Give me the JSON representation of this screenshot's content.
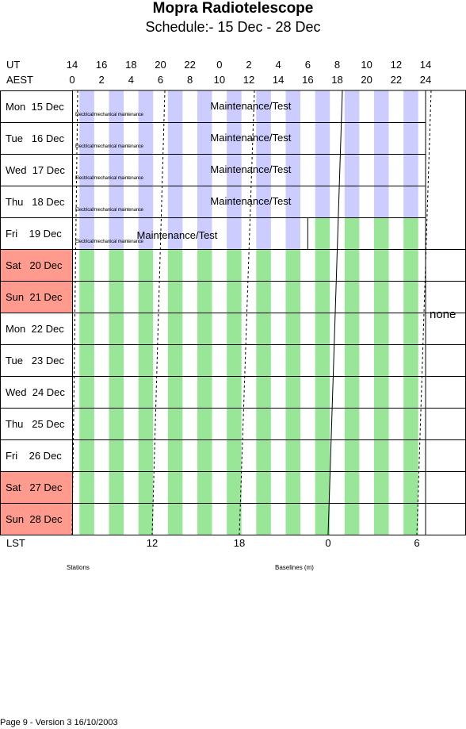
{
  "title": "Mopra Radiotelescope",
  "subtitle": "Schedule:- 15 Dec - 28 Dec",
  "ut_label": "UT",
  "aest_label": "AEST",
  "ut_ticks": [
    "14",
    "16",
    "18",
    "20",
    "22",
    "0",
    "2",
    "4",
    "6",
    "8",
    "10",
    "12",
    "14"
  ],
  "aest_ticks": [
    "0",
    "2",
    "4",
    "6",
    "8",
    "10",
    "12",
    "14",
    "16",
    "18",
    "20",
    "22",
    "24"
  ],
  "days": [
    {
      "name": "Mon",
      "date": "15 Dec",
      "weekend": false,
      "label": "Mon  15 Dec"
    },
    {
      "name": "Tue",
      "date": "16 Dec",
      "weekend": false,
      "label": "Tue   16 Dec"
    },
    {
      "name": "Wed",
      "date": "17 Dec",
      "weekend": false,
      "label": "Wed  17 Dec"
    },
    {
      "name": "Thu",
      "date": "18 Dec",
      "weekend": false,
      "label": "Thu   18 Dec"
    },
    {
      "name": "Fri",
      "date": "19 Dec",
      "weekend": false,
      "label": "Fri    19 Dec"
    },
    {
      "name": "Sat",
      "date": "20 Dec",
      "weekend": true,
      "label": "Sat   20 Dec"
    },
    {
      "name": "Sun",
      "date": "21 Dec",
      "weekend": true,
      "label": "Sun  21 Dec"
    },
    {
      "name": "Mon",
      "date": "22 Dec",
      "weekend": false,
      "label": "Mon  22 Dec"
    },
    {
      "name": "Tue",
      "date": "23 Dec",
      "weekend": false,
      "label": "Tue   23 Dec"
    },
    {
      "name": "Wed",
      "date": "24 Dec",
      "weekend": false,
      "label": "Wed  24 Dec"
    },
    {
      "name": "Thu",
      "date": "25 Dec",
      "weekend": false,
      "label": "Thu   25 Dec"
    },
    {
      "name": "Fri",
      "date": "26 Dec",
      "weekend": false,
      "label": "Fri    26 Dec"
    },
    {
      "name": "Sat",
      "date": "27 Dec",
      "weekend": true,
      "label": "Sat   27 Dec"
    },
    {
      "name": "Sun",
      "date": "28 Dec",
      "weekend": true,
      "label": "Sun  28 Dec"
    }
  ],
  "maintenance_label": "Maintenance/Test",
  "electrical_label": "Electrical/mechanical maintenance",
  "maintenance_until_hour_aest": [
    24,
    24,
    24,
    24,
    16
  ],
  "none_label": "none",
  "lst_label": "LST",
  "lst_ticks": [
    "12",
    "18",
    "0",
    "6"
  ],
  "stations_label": "Stations",
  "baselines_label": "Baselines (m)",
  "footer": "Page 9 - Version 3  16/10/2003",
  "colors": {
    "maintenance_stripe": "#ccccff",
    "observing_stripe": "#99e699",
    "weekend": "#ff9b8e"
  }
}
